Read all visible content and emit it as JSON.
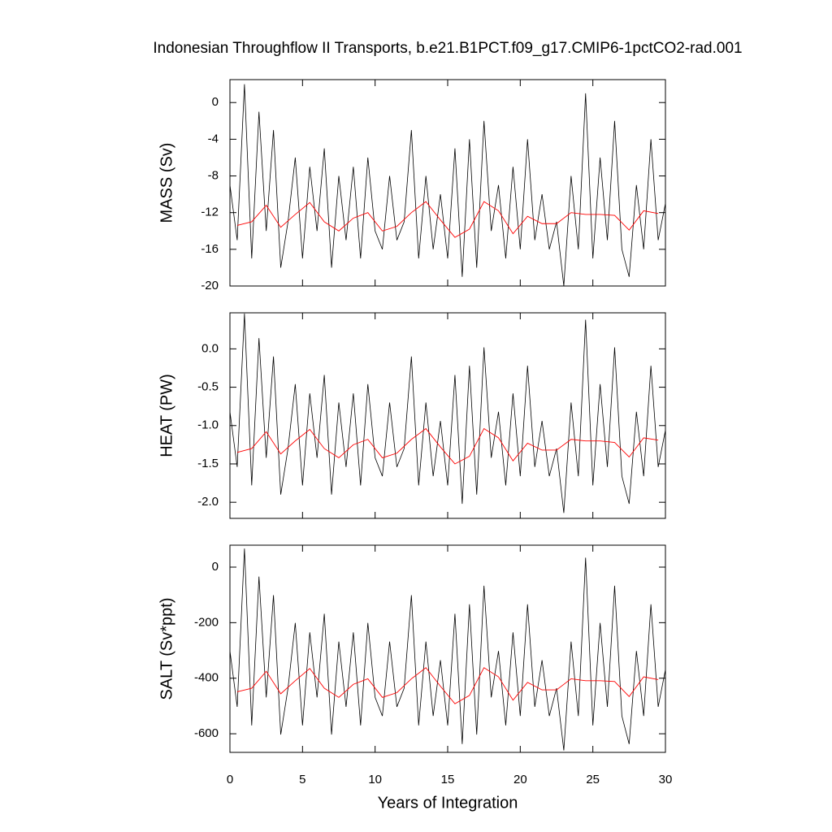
{
  "chart_data": [
    {
      "type": "line",
      "title": "Indonesian Throughflow II Transports, b.e21.B1PCT.f09_g17.CMIP6-1pctCO2-rad.001",
      "ylabel": "MASS (Sv)",
      "xlim": [
        0,
        30
      ],
      "xticks": [
        0,
        5,
        10,
        15,
        20,
        25,
        30
      ],
      "ylim": [
        -20,
        2.5
      ],
      "yticks": [
        0,
        -4,
        -8,
        -12,
        -16,
        -20
      ],
      "series": [
        {
          "color": "#000000",
          "x": [
            0,
            0.5,
            1,
            1.5,
            2,
            2.5,
            3,
            3.5,
            4,
            4.5,
            5,
            5.5,
            6,
            6.5,
            7,
            7.5,
            8,
            8.5,
            9,
            9.5,
            10,
            10.5,
            11,
            11.5,
            12,
            12.5,
            13,
            13.5,
            14,
            14.5,
            15,
            15.5,
            16,
            16.5,
            17,
            17.5,
            18,
            18.5,
            19,
            19.5,
            20,
            20.5,
            21,
            21.5,
            22,
            22.5,
            23,
            23.5,
            24,
            24.5,
            25,
            25.5,
            26,
            26.5,
            27,
            27.5,
            28,
            28.5,
            29,
            29.5,
            30
          ],
          "values": [
            -9,
            -15,
            2,
            -17,
            -1,
            -14,
            -3,
            -18,
            -13,
            -6,
            -17,
            -7,
            -14,
            -5,
            -18,
            -8,
            -15,
            -7,
            -17,
            -6,
            -14,
            -16,
            -8,
            -15,
            -13,
            -3,
            -17,
            -8,
            -16,
            -10,
            -17,
            -5,
            -19,
            -4,
            -18,
            -2,
            -14,
            -9,
            -17,
            -7,
            -16,
            -4,
            -15,
            -10,
            -16,
            -13,
            -20,
            -8,
            -16,
            1,
            -17,
            -6,
            -15,
            -2,
            -16,
            -19,
            -9,
            -16,
            -4,
            -15,
            -11
          ]
        },
        {
          "color": "#ff0000",
          "x": [
            0.5,
            1.5,
            2.5,
            3.5,
            4.5,
            5.5,
            6.5,
            7.5,
            8.5,
            9.5,
            10.5,
            11.5,
            12.5,
            13.5,
            14.5,
            15.5,
            16.5,
            17.5,
            18.5,
            19.5,
            20.5,
            21.5,
            22.5,
            23.5,
            24.5,
            25.5,
            26.5,
            27.5,
            28.5,
            29.5
          ],
          "values": [
            -13.4,
            -13.0,
            -11.2,
            -13.6,
            -12.2,
            -10.9,
            -13.0,
            -14.0,
            -12.6,
            -12.0,
            -14.0,
            -13.5,
            -12.0,
            -10.8,
            -12.8,
            -14.7,
            -13.8,
            -10.8,
            -11.8,
            -14.3,
            -12.4,
            -13.2,
            -13.2,
            -12.0,
            -12.2,
            -12.2,
            -12.3,
            -13.9,
            -11.8,
            -12.1
          ]
        }
      ]
    },
    {
      "type": "line",
      "ylabel": "HEAT (PW)",
      "xlim": [
        0,
        30
      ],
      "xticks": [
        0,
        5,
        10,
        15,
        20,
        25,
        30
      ],
      "ylim": [
        -2.21,
        0.47
      ],
      "yticks": [
        {
          "value": 0,
          "label": "0.0"
        },
        -0.5,
        {
          "value": -1,
          "label": "-1.0"
        },
        -1.5,
        {
          "value": -2,
          "label": "-2.0"
        }
      ],
      "series": [
        {
          "color": "#000000",
          "x": [
            0,
            0.5,
            1,
            1.5,
            2,
            2.5,
            3,
            3.5,
            4,
            4.5,
            5,
            5.5,
            6,
            6.5,
            7,
            7.5,
            8,
            8.5,
            9,
            9.5,
            10,
            10.5,
            11,
            11.5,
            12,
            12.5,
            13,
            13.5,
            14,
            14.5,
            15,
            15.5,
            16,
            16.5,
            17,
            17.5,
            18,
            18.5,
            19,
            19.5,
            20,
            20.5,
            21,
            21.5,
            22,
            22.5,
            23,
            23.5,
            24,
            24.5,
            25,
            25.5,
            26,
            26.5,
            27,
            27.5,
            28,
            28.5,
            29,
            29.5,
            30
          ],
          "values": [
            -0.82,
            -1.54,
            0.46,
            -1.78,
            0.14,
            -1.42,
            -0.1,
            -1.9,
            -1.3,
            -0.46,
            -1.78,
            -0.58,
            -1.42,
            -0.34,
            -1.9,
            -0.7,
            -1.54,
            -0.58,
            -1.78,
            -0.46,
            -1.42,
            -1.66,
            -0.7,
            -1.54,
            -1.3,
            -0.1,
            -1.78,
            -0.7,
            -1.66,
            -0.94,
            -1.78,
            -0.34,
            -2.02,
            -0.22,
            -1.9,
            0.02,
            -1.42,
            -0.82,
            -1.78,
            -0.58,
            -1.66,
            -0.22,
            -1.54,
            -0.94,
            -1.66,
            -1.3,
            -2.14,
            -0.7,
            -1.66,
            0.38,
            -1.78,
            -0.46,
            -1.54,
            0.02,
            -1.66,
            -2.02,
            -0.82,
            -1.66,
            -0.22,
            -1.54,
            -1.06
          ]
        },
        {
          "color": "#ff0000",
          "x": [
            0.5,
            1.5,
            2.5,
            3.5,
            4.5,
            5.5,
            6.5,
            7.5,
            8.5,
            9.5,
            10.5,
            11.5,
            12.5,
            13.5,
            14.5,
            15.5,
            16.5,
            17.5,
            18.5,
            19.5,
            20.5,
            21.5,
            22.5,
            23.5,
            24.5,
            25.5,
            26.5,
            27.5,
            28.5,
            29.5
          ],
          "values": [
            -1.35,
            -1.3,
            -1.08,
            -1.37,
            -1.2,
            -1.05,
            -1.3,
            -1.42,
            -1.25,
            -1.18,
            -1.42,
            -1.36,
            -1.18,
            -1.04,
            -1.28,
            -1.5,
            -1.4,
            -1.04,
            -1.16,
            -1.46,
            -1.23,
            -1.32,
            -1.32,
            -1.18,
            -1.2,
            -1.2,
            -1.22,
            -1.41,
            -1.16,
            -1.19
          ]
        }
      ]
    },
    {
      "type": "line",
      "ylabel": "SALT (Sv*ppt)",
      "xlabel": "Years of Integration",
      "xlim": [
        0,
        30
      ],
      "xticks": [
        0,
        5,
        10,
        15,
        20,
        25,
        30
      ],
      "ylim": [
        -667,
        79
      ],
      "yticks": [
        0,
        -200,
        -400,
        -600
      ],
      "series": [
        {
          "color": "#000000",
          "x": [
            0,
            0.5,
            1,
            1.5,
            2,
            2.5,
            3,
            3.5,
            4,
            4.5,
            5,
            5.5,
            6,
            6.5,
            7,
            7.5,
            8,
            8.5,
            9,
            9.5,
            10,
            10.5,
            11,
            11.5,
            12,
            12.5,
            13,
            13.5,
            14,
            14.5,
            15,
            15.5,
            16,
            16.5,
            17,
            17.5,
            18,
            18.5,
            19,
            19.5,
            20,
            20.5,
            21,
            21.5,
            22,
            22.5,
            23,
            23.5,
            24,
            24.5,
            25,
            25.5,
            26,
            26.5,
            27,
            27.5,
            28,
            28.5,
            29,
            29.5,
            30
          ],
          "values": [
            -302,
            -503,
            67,
            -570,
            -34,
            -469,
            -101,
            -603,
            -436,
            -201,
            -570,
            -235,
            -469,
            -168,
            -603,
            -268,
            -503,
            -235,
            -570,
            -201,
            -469,
            -536,
            -268,
            -503,
            -436,
            -101,
            -570,
            -268,
            -536,
            -335,
            -570,
            -168,
            -637,
            -134,
            -603,
            -67,
            -469,
            -302,
            -570,
            -235,
            -536,
            -134,
            -503,
            -335,
            -536,
            -436,
            -660,
            -268,
            -536,
            34,
            -570,
            -201,
            -503,
            -67,
            -536,
            -637,
            -302,
            -536,
            -134,
            -503,
            -369
          ]
        },
        {
          "color": "#ff0000",
          "x": [
            0.5,
            1.5,
            2.5,
            3.5,
            4.5,
            5.5,
            6.5,
            7.5,
            8.5,
            9.5,
            10.5,
            11.5,
            12.5,
            13.5,
            14.5,
            15.5,
            16.5,
            17.5,
            18.5,
            19.5,
            20.5,
            21.5,
            22.5,
            23.5,
            24.5,
            25.5,
            26.5,
            27.5,
            28.5,
            29.5
          ],
          "values": [
            -449,
            -436,
            -375,
            -456,
            -409,
            -365,
            -436,
            -469,
            -422,
            -402,
            -469,
            -452,
            -402,
            -362,
            -429,
            -492,
            -462,
            -362,
            -395,
            -479,
            -415,
            -442,
            -442,
            -402,
            -409,
            -409,
            -412,
            -466,
            -395,
            -405
          ]
        }
      ]
    }
  ]
}
